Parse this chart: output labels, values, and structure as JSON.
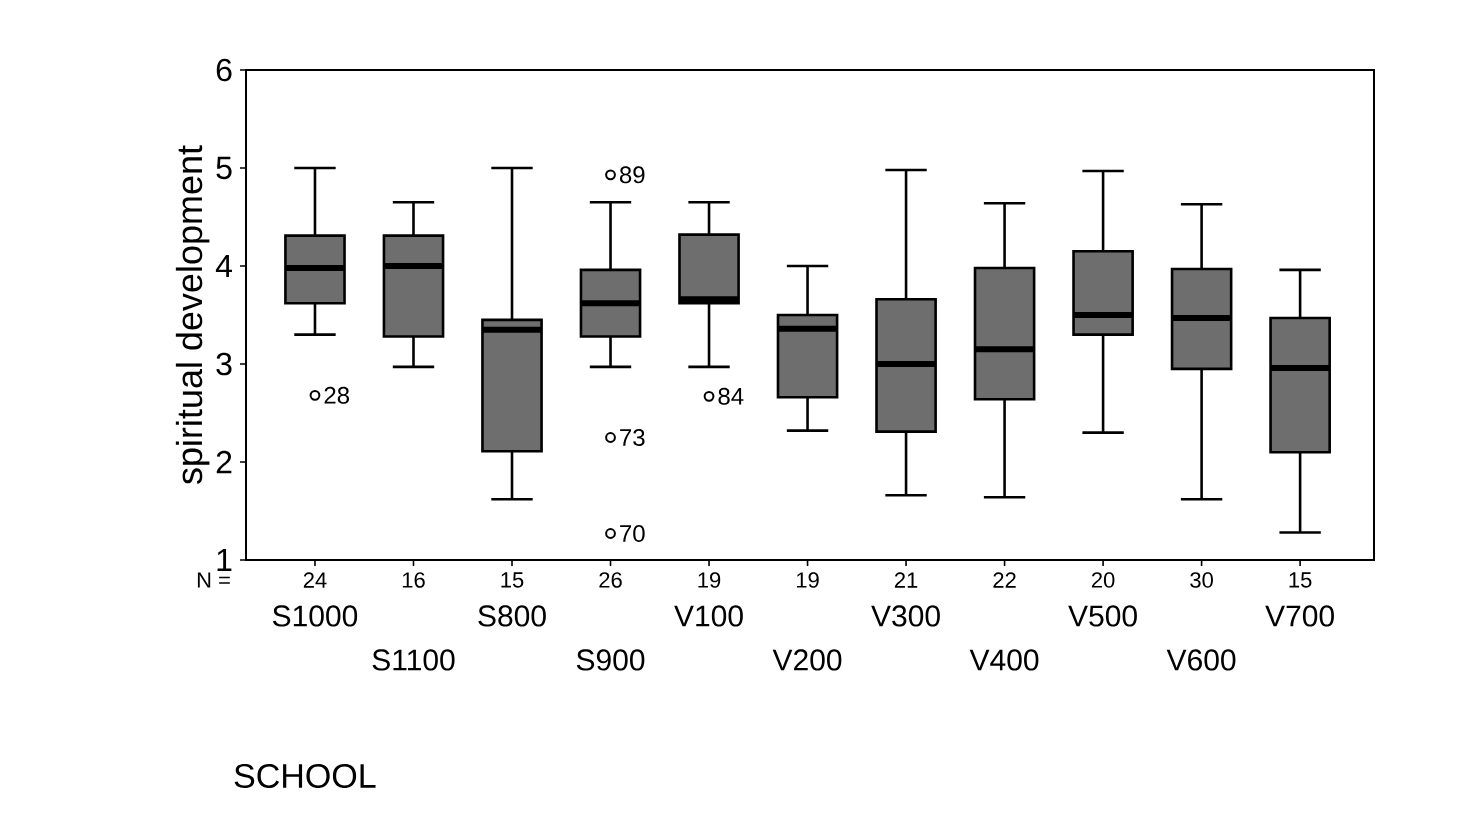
{
  "chart_data": {
    "type": "box",
    "ylabel": "spiritual development",
    "xlabel": "SCHOOL",
    "categories": [
      "S1000",
      "S1100",
      "S800",
      "S900",
      "V100",
      "V200",
      "V300",
      "V400",
      "V500",
      "V600",
      "V700"
    ],
    "color": "#6e6e6e",
    "boxes": [
      {
        "low": 3.3,
        "q1": 3.62,
        "median": 3.98,
        "q3": 4.31,
        "high": 5.0,
        "outliers": [
          2.68
        ]
      },
      {
        "low": 2.97,
        "q1": 3.28,
        "median": 4.0,
        "q3": 4.31,
        "high": 4.65
      },
      {
        "low": 1.62,
        "q1": 2.11,
        "median": 3.35,
        "q3": 3.45,
        "high": 5.0
      },
      {
        "low": 2.97,
        "q1": 3.28,
        "median": 3.62,
        "q3": 3.96,
        "high": 4.65,
        "outliers": [
          4.93,
          2.25,
          1.27
        ]
      },
      {
        "low": 2.97,
        "q1": 3.62,
        "median": 3.66,
        "q3": 4.32,
        "high": 4.65,
        "outliers": [
          2.67
        ]
      },
      {
        "low": 2.32,
        "q1": 2.66,
        "median": 3.36,
        "q3": 3.5,
        "high": 4.0
      },
      {
        "low": 1.66,
        "q1": 2.31,
        "median": 3.0,
        "q3": 3.66,
        "high": 4.98
      },
      {
        "low": 1.64,
        "q1": 2.64,
        "median": 3.15,
        "q3": 3.98,
        "high": 4.64
      },
      {
        "low": 2.3,
        "q1": 3.3,
        "median": 3.5,
        "q3": 4.15,
        "high": 4.97
      },
      {
        "low": 1.62,
        "q1": 2.95,
        "median": 3.47,
        "q3": 3.97,
        "high": 4.63
      },
      {
        "low": 1.28,
        "q1": 2.1,
        "median": 2.96,
        "q3": 3.47,
        "high": 3.96
      }
    ],
    "ylim": [
      1,
      6
    ],
    "yticks": [
      1,
      2,
      3,
      4,
      5,
      6
    ],
    "annotations": [
      "28",
      "89",
      "73",
      "70",
      "84",
      "N =",
      "24",
      "16",
      "15",
      "26",
      "19",
      "19",
      "21",
      "22",
      "20",
      "30",
      "15"
    ]
  }
}
